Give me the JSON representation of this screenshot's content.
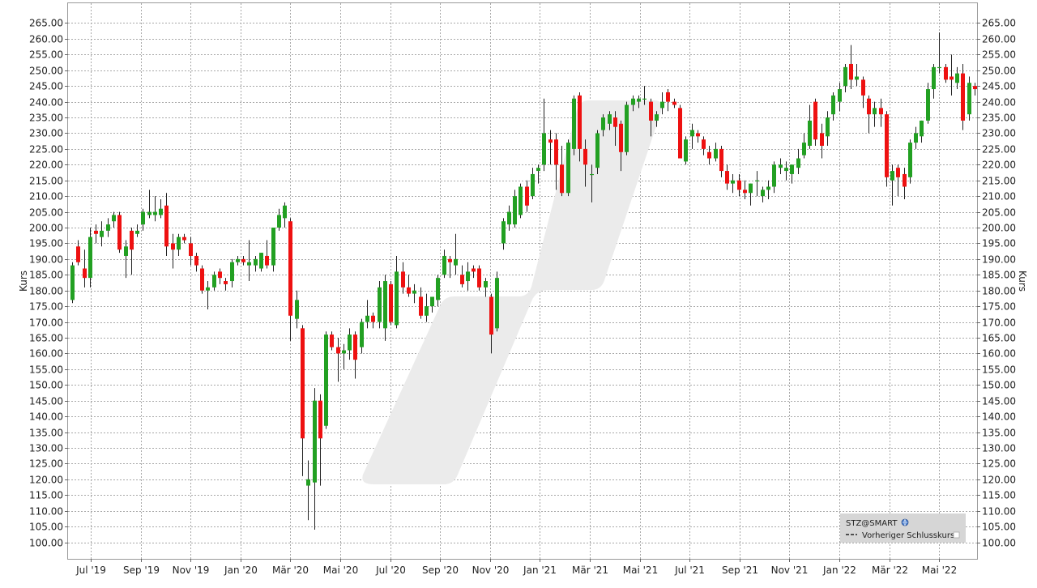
{
  "chart_data": {
    "type": "candlestick",
    "ylabel_left": "Kurs",
    "ylabel_right": "Kurs",
    "ylim": [
      96,
      270
    ],
    "ytick_labels": [
      "100.00",
      "105.00",
      "110.00",
      "115.00",
      "120.00",
      "125.00",
      "130.00",
      "135.00",
      "140.00",
      "145.00",
      "150.00",
      "155.00",
      "160.00",
      "165.00",
      "170.00",
      "175.00",
      "180.00",
      "185.00",
      "190.00",
      "195.00",
      "200.00",
      "205.00",
      "210.00",
      "215.00",
      "220.00",
      "225.00",
      "230.00",
      "235.00",
      "240.00",
      "245.00",
      "250.00",
      "255.00",
      "260.00",
      "265.00"
    ],
    "xtick_labels": [
      "Jul '19",
      "Sep '19",
      "Nov '19",
      "Jan '20",
      "Mär '20",
      "Mai '20",
      "Jul '20",
      "Sep '20",
      "Nov '20",
      "Jan '21",
      "Mär '21",
      "Mai '21",
      "Jul '21",
      "Sep '21",
      "Nov '21",
      "Jan '22",
      "Mär '22",
      "Mai '22"
    ],
    "grid": true,
    "up_color": "#22a022",
    "down_color": "#ee1111",
    "legend": {
      "position": "bottom-right",
      "title": "STZ@SMART",
      "entry": "Vorheriger Schlusskurs"
    },
    "candles": [
      {
        "o": 177.0,
        "h": 189.0,
        "l": 176.0,
        "c": 188.0
      },
      {
        "o": 194.0,
        "h": 196.0,
        "l": 188.0,
        "c": 189.0
      },
      {
        "o": 187.0,
        "h": 193.0,
        "l": 181.0,
        "c": 184.0
      },
      {
        "o": 184.0,
        "h": 200.0,
        "l": 181.0,
        "c": 197.0
      },
      {
        "o": 199.0,
        "h": 201.0,
        "l": 195.0,
        "c": 198.0
      },
      {
        "o": 197.0,
        "h": 202.0,
        "l": 194.0,
        "c": 199.0
      },
      {
        "o": 199.0,
        "h": 203.0,
        "l": 197.0,
        "c": 201.0
      },
      {
        "o": 202.0,
        "h": 205.0,
        "l": 200.0,
        "c": 204.0
      },
      {
        "o": 204.0,
        "h": 205.0,
        "l": 192.0,
        "c": 193.0
      },
      {
        "o": 191.0,
        "h": 196.0,
        "l": 184.0,
        "c": 194.0
      },
      {
        "o": 199.0,
        "h": 200.0,
        "l": 185.0,
        "c": 193.0
      },
      {
        "o": 198.0,
        "h": 201.0,
        "l": 197.0,
        "c": 199.0
      },
      {
        "o": 201.0,
        "h": 206.0,
        "l": 199.0,
        "c": 205.0
      },
      {
        "o": 204.0,
        "h": 212.0,
        "l": 203.0,
        "c": 205.0
      },
      {
        "o": 204.0,
        "h": 210.0,
        "l": 202.0,
        "c": 205.0
      },
      {
        "o": 204.0,
        "h": 209.0,
        "l": 203.0,
        "c": 206.0
      },
      {
        "o": 207.0,
        "h": 211.0,
        "l": 191.0,
        "c": 194.0
      },
      {
        "o": 195.0,
        "h": 198.0,
        "l": 187.0,
        "c": 193.0
      },
      {
        "o": 193.0,
        "h": 198.0,
        "l": 191.0,
        "c": 197.0
      },
      {
        "o": 197.0,
        "h": 198.0,
        "l": 195.0,
        "c": 196.0
      },
      {
        "o": 195.0,
        "h": 197.0,
        "l": 188.0,
        "c": 191.0
      },
      {
        "o": 191.0,
        "h": 192.0,
        "l": 186.0,
        "c": 188.0
      },
      {
        "o": 187.0,
        "h": 188.0,
        "l": 179.0,
        "c": 180.0
      },
      {
        "o": 180.0,
        "h": 183.0,
        "l": 174.0,
        "c": 181.0
      },
      {
        "o": 181.0,
        "h": 186.0,
        "l": 180.0,
        "c": 185.0
      },
      {
        "o": 186.0,
        "h": 187.0,
        "l": 182.0,
        "c": 184.0
      },
      {
        "o": 183.0,
        "h": 184.0,
        "l": 180.0,
        "c": 182.0
      },
      {
        "o": 183.0,
        "h": 190.0,
        "l": 181.0,
        "c": 189.0
      },
      {
        "o": 189.0,
        "h": 191.0,
        "l": 188.0,
        "c": 190.0
      },
      {
        "o": 190.0,
        "h": 191.0,
        "l": 188.0,
        "c": 189.0
      },
      {
        "o": 188.0,
        "h": 196.0,
        "l": 183.0,
        "c": 189.0
      },
      {
        "o": 188.0,
        "h": 191.0,
        "l": 186.0,
        "c": 190.0
      },
      {
        "o": 187.0,
        "h": 192.0,
        "l": 186.0,
        "c": 192.0
      },
      {
        "o": 191.0,
        "h": 196.0,
        "l": 187.0,
        "c": 188.0
      },
      {
        "o": 188.0,
        "h": 200.0,
        "l": 186.0,
        "c": 200.0
      },
      {
        "o": 200.0,
        "h": 206.0,
        "l": 199.0,
        "c": 204.0
      },
      {
        "o": 203.0,
        "h": 208.0,
        "l": 200.0,
        "c": 207.0
      },
      {
        "o": 202.0,
        "h": 203.0,
        "l": 164.0,
        "c": 172.0
      },
      {
        "o": 171.0,
        "h": 180.0,
        "l": 168.0,
        "c": 177.0
      },
      {
        "o": 168.0,
        "h": 169.0,
        "l": 121.0,
        "c": 133.0
      },
      {
        "o": 118.0,
        "h": 126.0,
        "l": 107.0,
        "c": 120.0
      },
      {
        "o": 119.0,
        "h": 149.0,
        "l": 104.0,
        "c": 145.0
      },
      {
        "o": 145.0,
        "h": 147.0,
        "l": 118.0,
        "c": 133.0
      },
      {
        "o": 137.0,
        "h": 167.0,
        "l": 136.0,
        "c": 166.0
      },
      {
        "o": 166.0,
        "h": 167.0,
        "l": 161.0,
        "c": 162.0
      },
      {
        "o": 162.0,
        "h": 165.0,
        "l": 151.0,
        "c": 160.0
      },
      {
        "o": 160.0,
        "h": 163.0,
        "l": 155.0,
        "c": 161.0
      },
      {
        "o": 161.0,
        "h": 168.0,
        "l": 158.0,
        "c": 166.0
      },
      {
        "o": 166.0,
        "h": 167.0,
        "l": 152.0,
        "c": 158.0
      },
      {
        "o": 162.0,
        "h": 171.0,
        "l": 160.0,
        "c": 170.0
      },
      {
        "o": 170.0,
        "h": 177.0,
        "l": 168.0,
        "c": 172.0
      },
      {
        "o": 172.0,
        "h": 173.0,
        "l": 168.0,
        "c": 170.0
      },
      {
        "o": 170.0,
        "h": 183.0,
        "l": 168.0,
        "c": 181.0
      },
      {
        "o": 168.0,
        "h": 185.0,
        "l": 164.0,
        "c": 183.0
      },
      {
        "o": 182.0,
        "h": 183.0,
        "l": 169.0,
        "c": 170.0
      },
      {
        "o": 169.0,
        "h": 191.0,
        "l": 168.0,
        "c": 186.0
      },
      {
        "o": 186.0,
        "h": 189.0,
        "l": 179.0,
        "c": 181.0
      },
      {
        "o": 181.0,
        "h": 185.0,
        "l": 178.0,
        "c": 179.0
      },
      {
        "o": 179.0,
        "h": 182.0,
        "l": 176.0,
        "c": 180.0
      },
      {
        "o": 178.0,
        "h": 181.0,
        "l": 171.0,
        "c": 172.0
      },
      {
        "o": 172.0,
        "h": 179.0,
        "l": 170.0,
        "c": 175.0
      },
      {
        "o": 175.0,
        "h": 178.0,
        "l": 173.0,
        "c": 178.0
      },
      {
        "o": 177.0,
        "h": 185.0,
        "l": 175.0,
        "c": 184.0
      },
      {
        "o": 185.0,
        "h": 193.0,
        "l": 184.0,
        "c": 191.0
      },
      {
        "o": 190.0,
        "h": 191.0,
        "l": 184.0,
        "c": 189.0
      },
      {
        "o": 188.0,
        "h": 198.0,
        "l": 185.0,
        "c": 190.0
      },
      {
        "o": 185.0,
        "h": 188.0,
        "l": 181.0,
        "c": 182.0
      },
      {
        "o": 183.0,
        "h": 189.0,
        "l": 180.0,
        "c": 186.0
      },
      {
        "o": 187.0,
        "h": 188.0,
        "l": 184.0,
        "c": 186.0
      },
      {
        "o": 187.0,
        "h": 188.0,
        "l": 180.0,
        "c": 181.0
      },
      {
        "o": 181.0,
        "h": 184.0,
        "l": 178.0,
        "c": 183.0
      },
      {
        "o": 178.0,
        "h": 179.0,
        "l": 160.0,
        "c": 166.0
      },
      {
        "o": 168.0,
        "h": 186.0,
        "l": 167.0,
        "c": 184.0
      },
      {
        "o": 195.0,
        "h": 203.0,
        "l": 193.0,
        "c": 202.0
      },
      {
        "o": 201.0,
        "h": 207.0,
        "l": 199.0,
        "c": 205.0
      },
      {
        "o": 201.0,
        "h": 212.0,
        "l": 200.0,
        "c": 210.0
      },
      {
        "o": 204.0,
        "h": 214.0,
        "l": 203.0,
        "c": 213.0
      },
      {
        "o": 213.0,
        "h": 215.0,
        "l": 205.0,
        "c": 207.0
      },
      {
        "o": 210.0,
        "h": 219.0,
        "l": 209.0,
        "c": 217.0
      },
      {
        "o": 218.0,
        "h": 220.0,
        "l": 214.0,
        "c": 219.0
      },
      {
        "o": 220.0,
        "h": 241.0,
        "l": 218.0,
        "c": 230.0
      },
      {
        "o": 228.0,
        "h": 231.0,
        "l": 220.0,
        "c": 227.0
      },
      {
        "o": 228.0,
        "h": 230.0,
        "l": 212.0,
        "c": 220.0
      },
      {
        "o": 220.0,
        "h": 226.0,
        "l": 210.0,
        "c": 211.0
      },
      {
        "o": 211.0,
        "h": 228.0,
        "l": 210.0,
        "c": 227.0
      },
      {
        "o": 225.0,
        "h": 242.0,
        "l": 223.0,
        "c": 241.0
      },
      {
        "o": 242.0,
        "h": 243.0,
        "l": 221.0,
        "c": 225.0
      },
      {
        "o": 225.0,
        "h": 228.0,
        "l": 213.0,
        "c": 220.0
      },
      {
        "o": 217.0,
        "h": 220.0,
        "l": 208.0,
        "c": 217.0
      },
      {
        "o": 219.0,
        "h": 231.0,
        "l": 217.0,
        "c": 230.0
      },
      {
        "o": 231.0,
        "h": 236.0,
        "l": 229.0,
        "c": 235.0
      },
      {
        "o": 233.0,
        "h": 237.0,
        "l": 231.0,
        "c": 236.0
      },
      {
        "o": 235.0,
        "h": 237.0,
        "l": 226.0,
        "c": 232.0
      },
      {
        "o": 233.0,
        "h": 234.0,
        "l": 218.0,
        "c": 224.0
      },
      {
        "o": 224.0,
        "h": 240.0,
        "l": 223.0,
        "c": 239.0
      },
      {
        "o": 239.0,
        "h": 242.0,
        "l": 237.0,
        "c": 241.0
      },
      {
        "o": 240.0,
        "h": 242.0,
        "l": 238.0,
        "c": 241.0
      },
      {
        "o": 241.0,
        "h": 245.0,
        "l": 239.0,
        "c": 241.0
      },
      {
        "o": 240.0,
        "h": 241.0,
        "l": 229.0,
        "c": 234.0
      },
      {
        "o": 234.0,
        "h": 237.0,
        "l": 232.0,
        "c": 236.0
      },
      {
        "o": 238.0,
        "h": 243.0,
        "l": 236.0,
        "c": 240.0
      },
      {
        "o": 243.0,
        "h": 244.0,
        "l": 237.0,
        "c": 240.0
      },
      {
        "o": 240.0,
        "h": 241.0,
        "l": 238.0,
        "c": 239.0
      },
      {
        "o": 238.0,
        "h": 239.0,
        "l": 222.0,
        "c": 222.0
      },
      {
        "o": 221.0,
        "h": 229.0,
        "l": 220.0,
        "c": 228.0
      },
      {
        "o": 229.0,
        "h": 233.0,
        "l": 225.0,
        "c": 231.0
      },
      {
        "o": 230.0,
        "h": 231.0,
        "l": 227.0,
        "c": 229.0
      },
      {
        "o": 228.0,
        "h": 229.0,
        "l": 223.0,
        "c": 225.0
      },
      {
        "o": 224.0,
        "h": 226.0,
        "l": 220.0,
        "c": 222.0
      },
      {
        "o": 222.0,
        "h": 227.0,
        "l": 221.0,
        "c": 225.0
      },
      {
        "o": 225.0,
        "h": 226.0,
        "l": 216.0,
        "c": 218.0
      },
      {
        "o": 218.0,
        "h": 220.0,
        "l": 212.0,
        "c": 214.0
      },
      {
        "o": 214.0,
        "h": 217.0,
        "l": 211.0,
        "c": 215.0
      },
      {
        "o": 215.0,
        "h": 217.0,
        "l": 210.0,
        "c": 212.0
      },
      {
        "o": 212.0,
        "h": 215.0,
        "l": 209.0,
        "c": 211.0
      },
      {
        "o": 211.0,
        "h": 214.0,
        "l": 207.0,
        "c": 214.0
      },
      {
        "o": 215.0,
        "h": 218.0,
        "l": 210.0,
        "c": 215.0
      },
      {
        "o": 210.0,
        "h": 213.0,
        "l": 208.0,
        "c": 212.0
      },
      {
        "o": 212.0,
        "h": 215.0,
        "l": 209.0,
        "c": 213.0
      },
      {
        "o": 213.0,
        "h": 221.0,
        "l": 211.0,
        "c": 220.0
      },
      {
        "o": 219.0,
        "h": 222.0,
        "l": 217.0,
        "c": 220.0
      },
      {
        "o": 218.0,
        "h": 221.0,
        "l": 215.0,
        "c": 219.0
      },
      {
        "o": 217.0,
        "h": 220.0,
        "l": 214.0,
        "c": 220.0
      },
      {
        "o": 219.0,
        "h": 225.0,
        "l": 217.0,
        "c": 222.0
      },
      {
        "o": 223.0,
        "h": 230.0,
        "l": 222.0,
        "c": 227.0
      },
      {
        "o": 226.0,
        "h": 239.0,
        "l": 225.0,
        "c": 234.0
      },
      {
        "o": 240.0,
        "h": 241.0,
        "l": 226.0,
        "c": 228.0
      },
      {
        "o": 230.0,
        "h": 233.0,
        "l": 222.0,
        "c": 226.0
      },
      {
        "o": 229.0,
        "h": 237.0,
        "l": 226.0,
        "c": 235.0
      },
      {
        "o": 236.0,
        "h": 243.0,
        "l": 234.0,
        "c": 242.0
      },
      {
        "o": 240.0,
        "h": 246.0,
        "l": 237.0,
        "c": 244.0
      },
      {
        "o": 245.0,
        "h": 252.0,
        "l": 243.0,
        "c": 251.0
      },
      {
        "o": 252.0,
        "h": 258.0,
        "l": 244.0,
        "c": 247.0
      },
      {
        "o": 247.0,
        "h": 252.0,
        "l": 245.0,
        "c": 248.0
      },
      {
        "o": 247.0,
        "h": 248.0,
        "l": 238.0,
        "c": 242.0
      },
      {
        "o": 241.0,
        "h": 242.0,
        "l": 230.0,
        "c": 236.0
      },
      {
        "o": 236.0,
        "h": 240.0,
        "l": 232.0,
        "c": 238.0
      },
      {
        "o": 238.0,
        "h": 241.0,
        "l": 232.0,
        "c": 236.0
      },
      {
        "o": 236.0,
        "h": 237.0,
        "l": 213.0,
        "c": 216.0
      },
      {
        "o": 215.0,
        "h": 220.0,
        "l": 207.0,
        "c": 218.0
      },
      {
        "o": 219.0,
        "h": 220.0,
        "l": 210.0,
        "c": 216.0
      },
      {
        "o": 217.0,
        "h": 219.0,
        "l": 209.0,
        "c": 213.0
      },
      {
        "o": 216.0,
        "h": 228.0,
        "l": 214.0,
        "c": 227.0
      },
      {
        "o": 227.0,
        "h": 232.0,
        "l": 225.0,
        "c": 230.0
      },
      {
        "o": 229.0,
        "h": 234.0,
        "l": 227.0,
        "c": 234.0
      },
      {
        "o": 234.0,
        "h": 246.0,
        "l": 233.0,
        "c": 244.0
      },
      {
        "o": 244.0,
        "h": 252.0,
        "l": 241.0,
        "c": 251.0
      },
      {
        "o": 251.0,
        "h": 262.0,
        "l": 249.0,
        "c": 251.0
      },
      {
        "o": 251.0,
        "h": 252.0,
        "l": 246.0,
        "c": 247.0
      },
      {
        "o": 248.0,
        "h": 255.0,
        "l": 242.0,
        "c": 247.0
      },
      {
        "o": 246.0,
        "h": 251.0,
        "l": 244.0,
        "c": 249.0
      },
      {
        "o": 249.0,
        "h": 252.0,
        "l": 231.0,
        "c": 234.0
      },
      {
        "o": 236.0,
        "h": 248.0,
        "l": 234.0,
        "c": 246.0
      },
      {
        "o": 245.0,
        "h": 246.0,
        "l": 242.0,
        "c": 244.0
      }
    ]
  }
}
